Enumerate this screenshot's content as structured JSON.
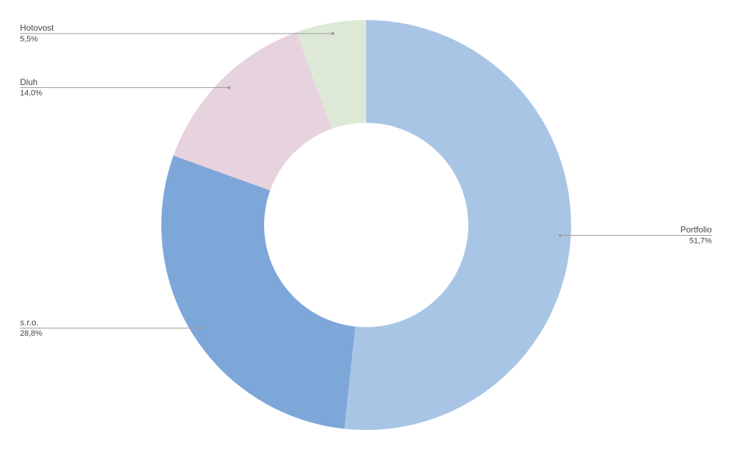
{
  "chart_data": {
    "type": "pie",
    "categories": [
      "Portfolio",
      "s.r.o.",
      "Dluh",
      "Hotovost"
    ],
    "values": [
      51.7,
      28.8,
      14.0,
      5.5
    ],
    "value_labels": [
      "51,7%",
      "28,8%",
      "14,0%",
      "5,5%"
    ],
    "colors": [
      "#a9c5e6",
      "#7ea7d9",
      "#e7d3de",
      "#dde9d6"
    ],
    "donut": true
  }
}
